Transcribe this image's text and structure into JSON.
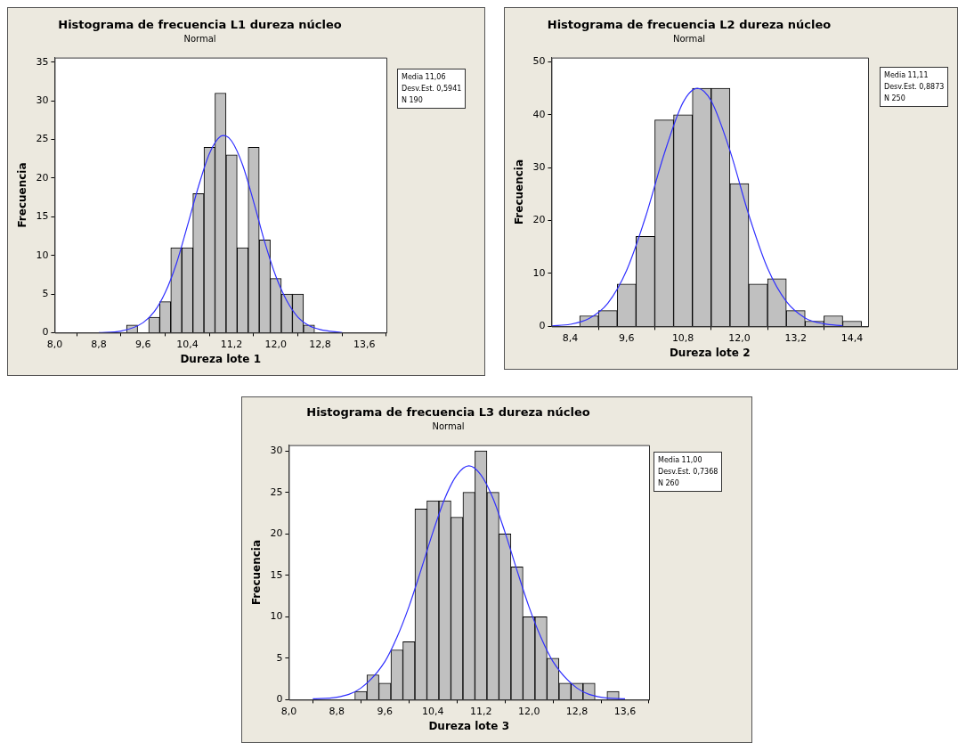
{
  "chart_data": [
    {
      "type": "histogram",
      "title": "Histograma de frecuencia L1 dureza núcleo",
      "subtitle": "Normal",
      "xlabel": "Dureza lote 1",
      "ylabel": "Frecuencia",
      "bins": [
        9.3,
        9.5,
        9.7,
        9.9,
        10.1,
        10.3,
        10.5,
        10.7,
        10.9,
        11.1,
        11.3,
        11.5,
        11.7,
        11.9,
        12.1,
        12.3,
        12.5,
        12.7
      ],
      "values": [
        1,
        0,
        2,
        4,
        11,
        11,
        18,
        24,
        31,
        23,
        11,
        24,
        12,
        7,
        5,
        5,
        1
      ],
      "color": "#c0c0c0",
      "series": [
        {
          "type": "line",
          "color": "#3030ff",
          "x": [
            8.8,
            9.2,
            9.6,
            9.8,
            10.0,
            10.2,
            10.4,
            10.6,
            10.8,
            11.0,
            11.06,
            11.2,
            11.4,
            11.6,
            11.8,
            12.0,
            12.2,
            12.4,
            12.6,
            12.8,
            13.2
          ],
          "values": [
            0.0,
            0.2,
            1.3,
            2.7,
            5.2,
            8.9,
            13.8,
            18.9,
            23.2,
            25.4,
            25.5,
            24.8,
            21.7,
            16.9,
            11.7,
            7.3,
            4.1,
            2.0,
            0.9,
            0.4,
            0.0
          ]
        }
      ],
      "xlim": [
        8.0,
        14.0
      ],
      "xticks": [
        {
          "value": 8.0,
          "label": "8,0"
        },
        {
          "value": 8.8,
          "label": "8,8"
        },
        {
          "value": 9.6,
          "label": "9,6"
        },
        {
          "value": 10.4,
          "label": "10,4"
        },
        {
          "value": 11.2,
          "label": "11,2"
        },
        {
          "value": 12.0,
          "label": "12,0"
        },
        {
          "value": 12.8,
          "label": "12,8"
        },
        {
          "value": 13.6,
          "label": "13,6"
        }
      ],
      "ylim": [
        0,
        35.6
      ],
      "yticks": [
        0,
        5,
        10,
        15,
        20,
        25,
        30,
        35
      ],
      "annotations": [
        "Media 11,06",
        "Desv.Est. 0,5941",
        "N 190"
      ],
      "grid": false,
      "legend": false,
      "marker": "none"
    },
    {
      "type": "histogram",
      "title": "Histograma de frecuencia L2 dureza núcleo",
      "subtitle": "Normal",
      "xlabel": "Dureza lote 2",
      "ylabel": "Frecuencia",
      "bins": [
        8.6,
        9.0,
        9.4,
        9.8,
        10.2,
        10.6,
        11.0,
        11.4,
        11.8,
        12.2,
        12.6,
        13.0,
        13.4,
        13.8,
        14.2,
        14.6
      ],
      "values": [
        2,
        3,
        8,
        17,
        39,
        40,
        45,
        45,
        27,
        8,
        9,
        3,
        1,
        2,
        1
      ],
      "color": "#c0c0c0",
      "series": [
        {
          "type": "line",
          "color": "#3030ff",
          "x": [
            8.0,
            8.4,
            8.8,
            9.2,
            9.6,
            10.0,
            10.4,
            10.8,
            11.11,
            11.4,
            11.8,
            12.2,
            12.6,
            13.0,
            13.4,
            13.8,
            14.2
          ],
          "values": [
            0.1,
            0.4,
            1.5,
            4.4,
            10.6,
            20.6,
            32.6,
            42.3,
            45.0,
            42.6,
            33.2,
            21.1,
            11.0,
            4.7,
            1.6,
            0.5,
            0.1
          ]
        }
      ],
      "xlim": [
        8.0,
        14.74
      ],
      "xticks": [
        {
          "value": 8.4,
          "label": "8,4"
        },
        {
          "value": 9.6,
          "label": "9,6"
        },
        {
          "value": 10.8,
          "label": "10,8"
        },
        {
          "value": 12.0,
          "label": "12,0"
        },
        {
          "value": 13.2,
          "label": "13,2"
        },
        {
          "value": 14.4,
          "label": "14,4"
        }
      ],
      "ylim": [
        0,
        50.8
      ],
      "yticks": [
        0,
        10,
        20,
        30,
        40,
        50
      ],
      "annotations": [
        "Media 11,11",
        "Desv.Est. 0,8873",
        "N 250"
      ],
      "grid": false,
      "legend": false,
      "marker": "none"
    },
    {
      "type": "histogram",
      "title": "Histograma de frecuencia L3 dureza núcleo",
      "subtitle": "Normal",
      "xlabel": "Dureza lote 3",
      "ylabel": "Frecuencia",
      "bins": [
        9.1,
        9.3,
        9.5,
        9.7,
        9.9,
        10.1,
        10.3,
        10.5,
        10.7,
        10.9,
        11.1,
        11.3,
        11.5,
        11.7,
        11.9,
        12.1,
        12.3,
        12.5,
        12.7,
        12.9,
        13.1,
        13.3,
        13.5
      ],
      "values": [
        1,
        3,
        2,
        6,
        7,
        23,
        24,
        24,
        22,
        25,
        30,
        25,
        20,
        16,
        10,
        10,
        5,
        2,
        2,
        2,
        0,
        1
      ],
      "color": "#c0c0c0",
      "series": [
        {
          "type": "line",
          "color": "#3030ff",
          "x": [
            8.4,
            8.8,
            9.2,
            9.6,
            9.8,
            10.0,
            10.2,
            10.4,
            10.6,
            10.8,
            11.0,
            11.2,
            11.4,
            11.6,
            11.8,
            12.0,
            12.2,
            12.4,
            12.8,
            13.2,
            13.6
          ],
          "values": [
            0.1,
            0.3,
            1.4,
            4.6,
            7.5,
            11.2,
            15.6,
            20.2,
            24.3,
            27.1,
            28.2,
            27.1,
            24.3,
            20.2,
            15.6,
            11.2,
            7.5,
            4.6,
            1.4,
            0.3,
            0.1
          ]
        }
      ],
      "xlim": [
        8.0,
        14.0
      ],
      "xticks": [
        {
          "value": 8.0,
          "label": "8,0"
        },
        {
          "value": 8.8,
          "label": "8,8"
        },
        {
          "value": 9.6,
          "label": "9,6"
        },
        {
          "value": 10.4,
          "label": "10,4"
        },
        {
          "value": 11.2,
          "label": "11,2"
        },
        {
          "value": 12.0,
          "label": "12,0"
        },
        {
          "value": 12.8,
          "label": "12,8"
        },
        {
          "value": 13.6,
          "label": "13,6"
        }
      ],
      "ylim": [
        0,
        30.7
      ],
      "yticks": [
        0,
        5,
        10,
        15,
        20,
        25,
        30
      ],
      "annotations": [
        "Media 11,00",
        "Desv.Est. 0,7368",
        "N 260"
      ],
      "grid": false,
      "legend": false,
      "marker": "none"
    }
  ]
}
